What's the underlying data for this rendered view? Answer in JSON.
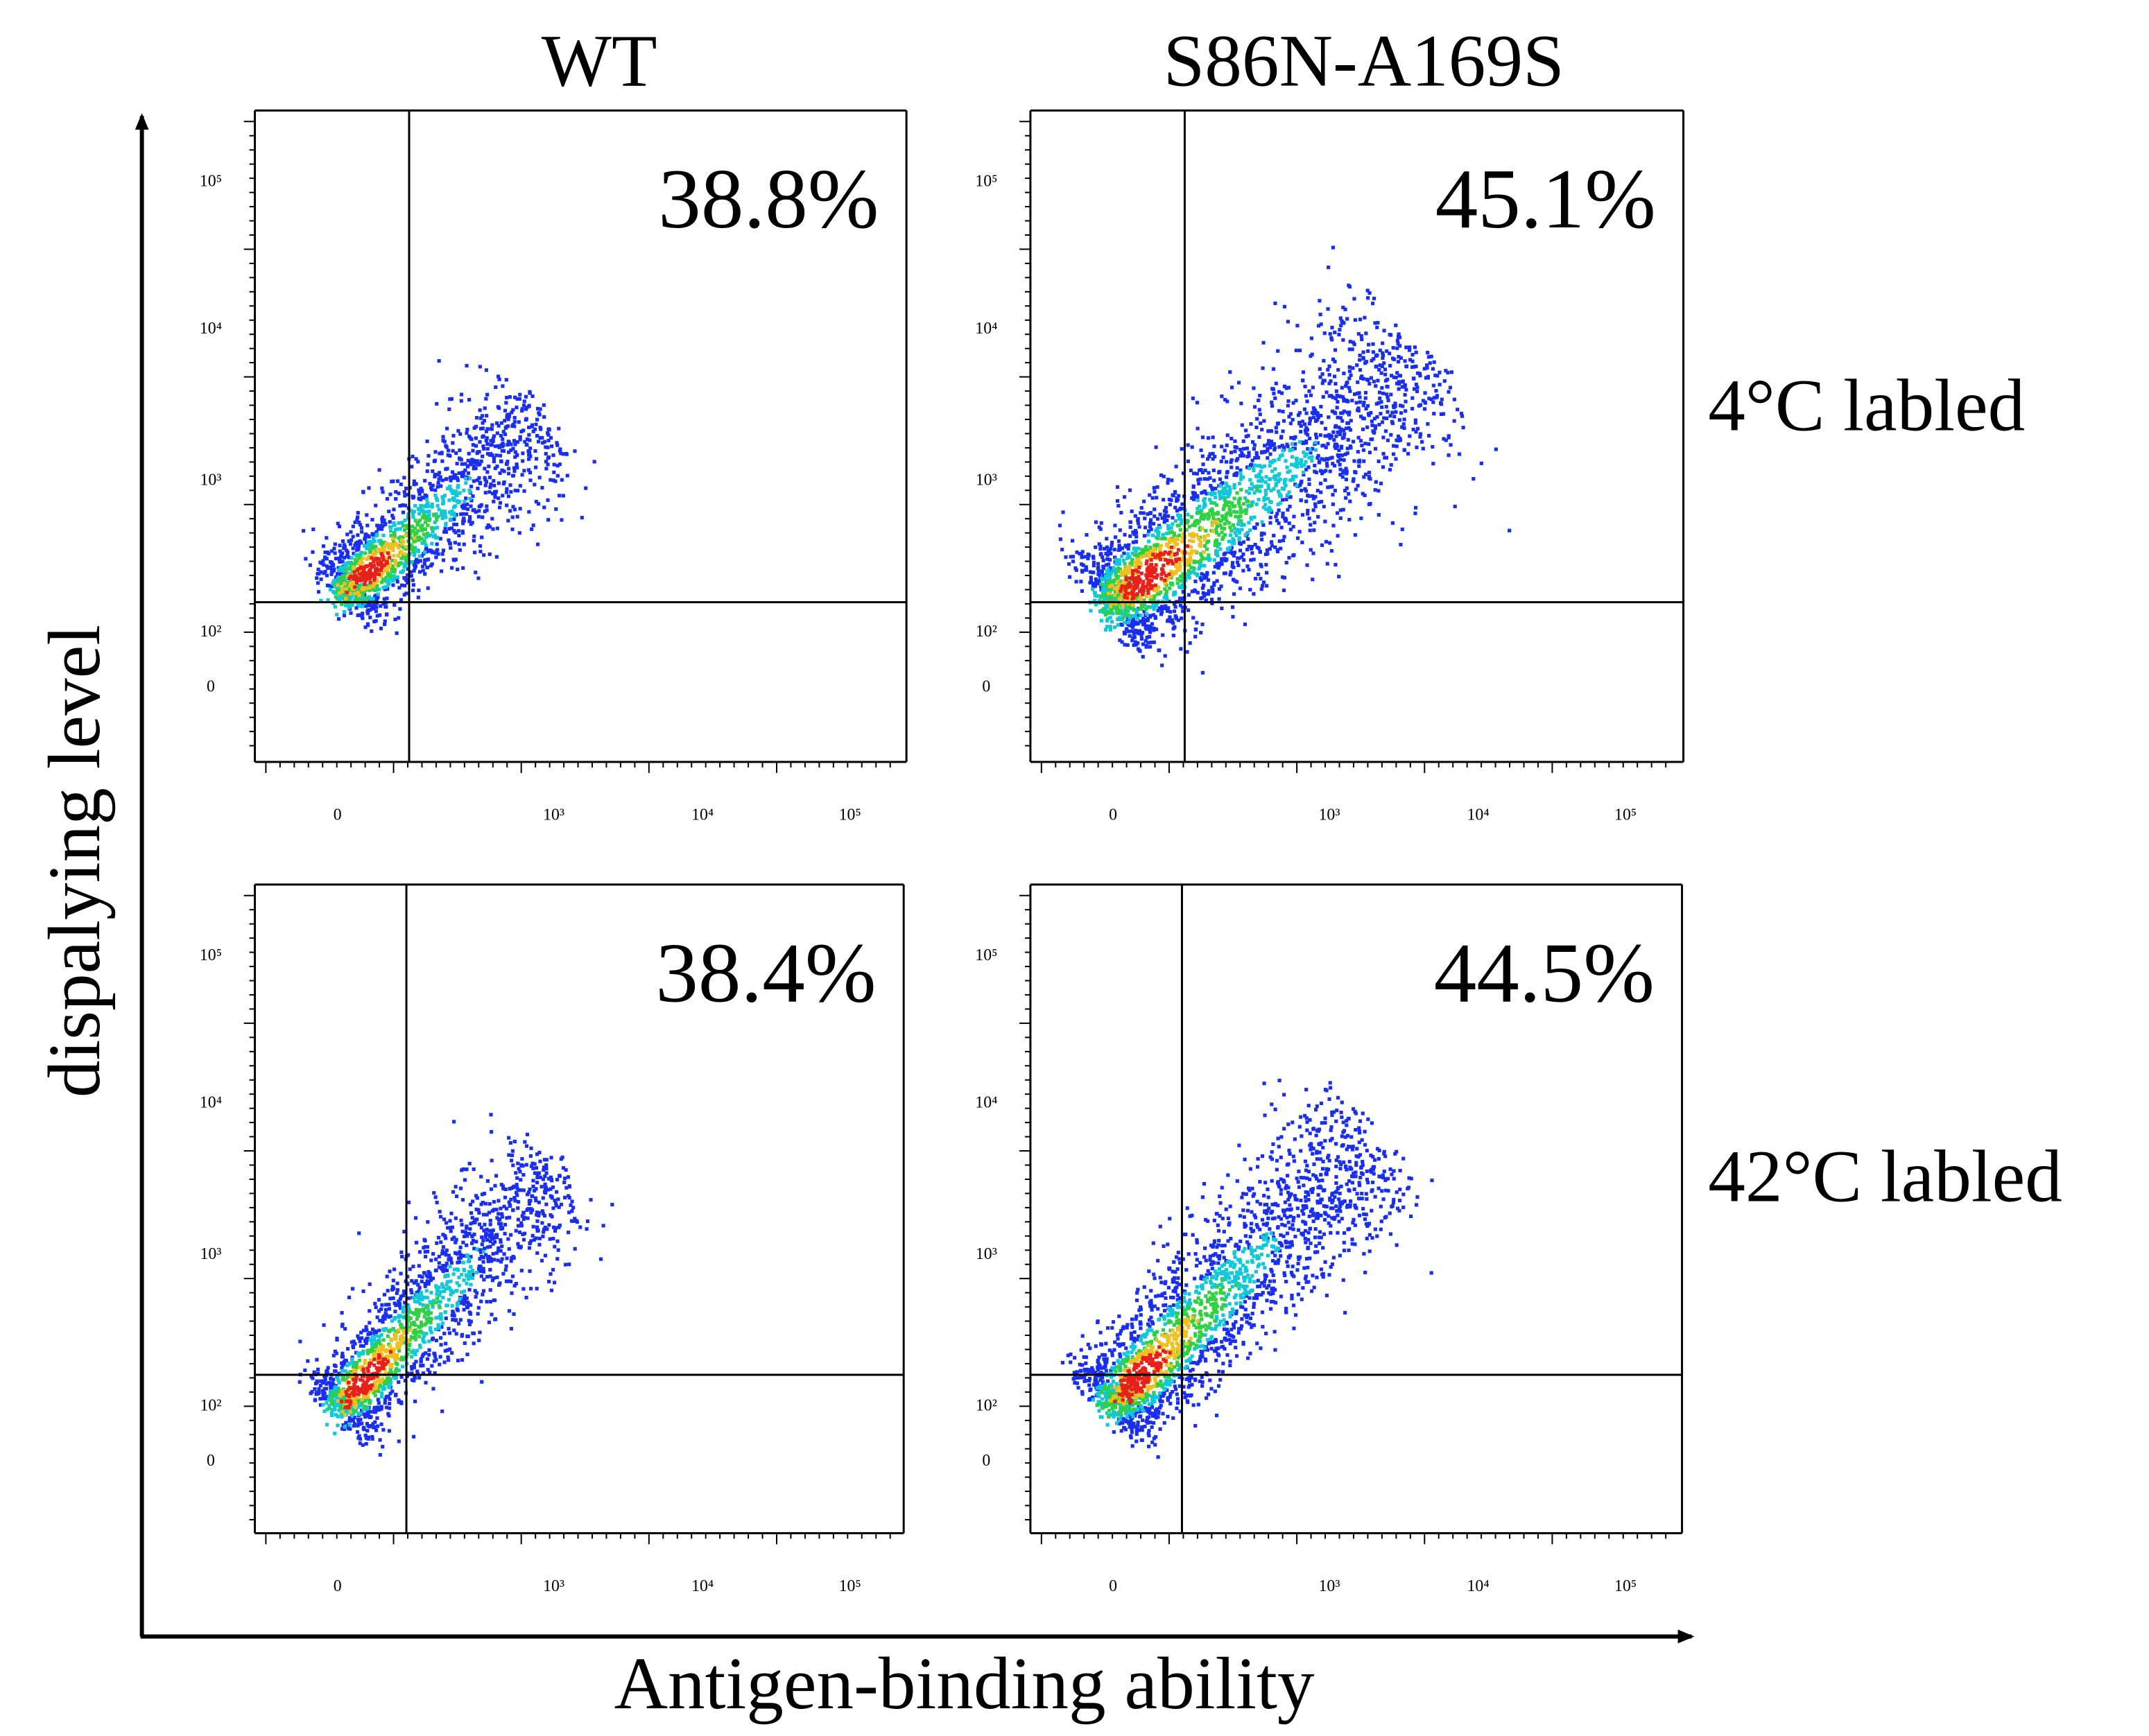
{
  "columns": [
    "WT",
    "S86N-A169S"
  ],
  "rows": [
    "4°C labled",
    "42°C labled"
  ],
  "y_axis_label": "dispalying level",
  "x_axis_label": "Antigen-binding ability",
  "panels": [
    {
      "percent": "38.8%"
    },
    {
      "percent": "45.1%"
    },
    {
      "percent": "38.4%"
    },
    {
      "percent": "44.5%"
    }
  ],
  "yticks": [
    "10⁵",
    "10⁴",
    "10³",
    "10²",
    "0"
  ],
  "xticks": [
    "0",
    "10³",
    "10⁴",
    "10⁵"
  ]
}
